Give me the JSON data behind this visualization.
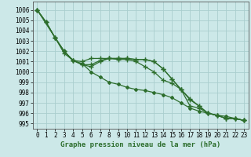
{
  "xlabel": "Graphe pression niveau de la mer (hPa)",
  "background_color": "#cce8e8",
  "grid_color": "#aacece",
  "line_color": "#2d6e2d",
  "xlim": [
    -0.5,
    23.5
  ],
  "ylim": [
    994.5,
    1006.8
  ],
  "yticks": [
    995,
    996,
    997,
    998,
    999,
    1000,
    1001,
    1002,
    1003,
    1004,
    1005,
    1006
  ],
  "xticks": [
    0,
    1,
    2,
    3,
    4,
    5,
    6,
    7,
    8,
    9,
    10,
    11,
    12,
    13,
    14,
    15,
    16,
    17,
    18,
    19,
    20,
    21,
    22,
    23
  ],
  "series": [
    {
      "x": [
        0,
        1,
        2,
        3,
        4,
        5,
        6,
        7,
        8,
        9,
        10,
        11,
        12,
        13,
        14,
        15,
        16,
        17,
        18,
        19,
        20,
        21,
        22,
        23
      ],
      "y": [
        1006.0,
        1004.8,
        1003.3,
        1002.0,
        1001.1,
        1000.8,
        1000.0,
        999.5,
        999.0,
        998.8,
        998.5,
        998.3,
        998.2,
        998.0,
        997.8,
        997.5,
        997.0,
        996.5,
        996.2,
        996.0,
        995.8,
        995.7,
        995.5,
        995.3
      ],
      "marker": "D",
      "markersize": 2,
      "linewidth": 0.9
    },
    {
      "x": [
        0,
        1,
        2,
        3,
        4,
        5,
        6,
        7,
        8,
        9,
        10,
        11,
        12,
        13,
        14,
        15,
        16,
        17,
        18,
        19,
        20,
        21,
        22,
        23
      ],
      "y": [
        1006.0,
        1004.8,
        1003.3,
        1001.8,
        1001.1,
        1001.0,
        1001.3,
        1001.3,
        1001.3,
        1001.2,
        1001.2,
        1001.0,
        1000.5,
        1000.0,
        999.2,
        998.9,
        998.3,
        997.3,
        996.7,
        996.0,
        995.8,
        995.5,
        995.5,
        995.3
      ],
      "marker": "+",
      "markersize": 4,
      "linewidth": 0.9
    },
    {
      "x": [
        0,
        1,
        2,
        3,
        4,
        5,
        6,
        7,
        8,
        9,
        10,
        11,
        12,
        13,
        14,
        15,
        16,
        17,
        18,
        19,
        20,
        21,
        22,
        23
      ],
      "y": [
        1006.0,
        1004.8,
        1003.3,
        1002.0,
        1001.1,
        1000.7,
        1000.5,
        1001.0,
        1001.3,
        1001.3,
        1001.3,
        1001.2,
        1001.2,
        1001.0,
        1000.3,
        999.3,
        998.3,
        997.4,
        996.7,
        996.0,
        995.8,
        995.5,
        995.5,
        995.3
      ],
      "marker": "+",
      "markersize": 4,
      "linewidth": 0.9
    },
    {
      "x": [
        0,
        2,
        3,
        4,
        5,
        6,
        7,
        8,
        9,
        10,
        11,
        12,
        13,
        14,
        15,
        16,
        17,
        18,
        19,
        20,
        21,
        22,
        23
      ],
      "y": [
        1006.0,
        1003.3,
        1002.0,
        1001.1,
        1000.7,
        1000.7,
        1001.1,
        1001.3,
        1001.3,
        1001.3,
        1001.2,
        1001.2,
        1001.0,
        1000.3,
        999.3,
        998.3,
        996.7,
        996.5,
        996.0,
        995.8,
        995.5,
        995.5,
        995.3
      ],
      "marker": "+",
      "markersize": 4,
      "linewidth": 0.9
    }
  ],
  "font_family": "monospace",
  "xlabel_fontsize": 6.5,
  "tick_fontsize": 5.5,
  "xlabel_fontweight": "bold"
}
